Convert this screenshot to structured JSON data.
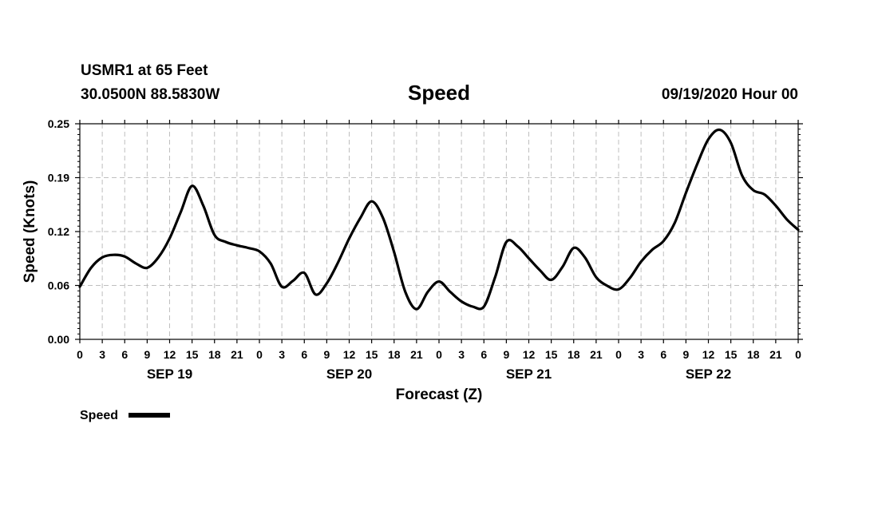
{
  "header": {
    "station": "USMR1 at 65 Feet",
    "location": "30.0500N 88.5830W",
    "datetime": "09/19/2020 Hour 00"
  },
  "chart_data": {
    "type": "line",
    "title": "Speed",
    "xlabel": "Forecast (Z)",
    "ylabel": "Speed (Knots)",
    "ylim": [
      0,
      0.25
    ],
    "xlim": [
      0,
      96
    ],
    "y_ticks": [
      "0.00",
      "0.06",
      "0.12",
      "0.19",
      "0.25"
    ],
    "x_tick_labels": [
      "0",
      "3",
      "6",
      "9",
      "12",
      "15",
      "18",
      "21",
      "0",
      "3",
      "6",
      "9",
      "12",
      "15",
      "18",
      "21",
      "0",
      "3",
      "6",
      "9",
      "12",
      "15",
      "18",
      "21",
      "0",
      "3",
      "6",
      "9",
      "12",
      "15",
      "18",
      "21",
      "0"
    ],
    "day_labels": [
      "SEP 19",
      "SEP 20",
      "SEP 21",
      "SEP 22"
    ],
    "grid": true,
    "legend_placement": "bottom-left",
    "line_color": "#000000",
    "series": [
      {
        "name": "Speed",
        "x": [
          0,
          1.5,
          3,
          4.5,
          6,
          7.5,
          9,
          10.5,
          12,
          13.5,
          15,
          16.5,
          18,
          19.5,
          21,
          22.5,
          24,
          25.5,
          27,
          28.5,
          30,
          31.5,
          33,
          34.5,
          36,
          37.5,
          39,
          40.5,
          42,
          43.5,
          45,
          46.5,
          48,
          49.5,
          51,
          52.5,
          54,
          55.5,
          57,
          58.5,
          60,
          61.5,
          63,
          64.5,
          66,
          67.5,
          69,
          70.5,
          72,
          73.5,
          75,
          76.5,
          78,
          79.5,
          81,
          82.5,
          84,
          85.5,
          87,
          88.5,
          90,
          91.5,
          93,
          94.5,
          96
        ],
        "y": [
          0.061,
          0.083,
          0.095,
          0.098,
          0.096,
          0.088,
          0.083,
          0.095,
          0.117,
          0.148,
          0.178,
          0.155,
          0.121,
          0.113,
          0.109,
          0.106,
          0.102,
          0.088,
          0.061,
          0.068,
          0.077,
          0.052,
          0.065,
          0.089,
          0.117,
          0.141,
          0.16,
          0.141,
          0.101,
          0.055,
          0.035,
          0.055,
          0.067,
          0.055,
          0.044,
          0.038,
          0.038,
          0.072,
          0.113,
          0.108,
          0.094,
          0.08,
          0.069,
          0.084,
          0.106,
          0.095,
          0.072,
          0.062,
          0.058,
          0.071,
          0.09,
          0.104,
          0.114,
          0.135,
          0.17,
          0.203,
          0.232,
          0.243,
          0.228,
          0.19,
          0.173,
          0.168,
          0.155,
          0.139,
          0.127
        ]
      }
    ]
  },
  "legend": {
    "label": "Speed"
  }
}
